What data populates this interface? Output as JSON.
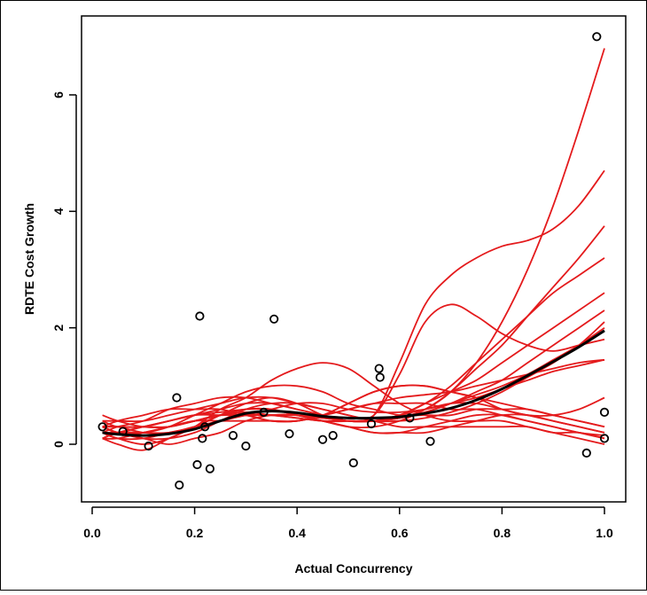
{
  "chart_data": {
    "type": "scatter",
    "xlabel": "Actual Concurrency",
    "ylabel": "RDTE Cost Growth",
    "xlim": [
      0.0,
      1.0
    ],
    "ylim": [
      -1.0,
      7.0
    ],
    "x_ticks": [
      "0.0",
      "0.2",
      "0.4",
      "0.6",
      "0.8",
      "1.0"
    ],
    "y_ticks": [
      "0",
      "2",
      "4",
      "6"
    ],
    "grid": false,
    "colors": {
      "points": "#000000",
      "bootstrap_curves": "#e41a1c",
      "fit_curve": "#000000"
    },
    "points": [
      {
        "x": 0.02,
        "y": 0.3
      },
      {
        "x": 0.06,
        "y": 0.22
      },
      {
        "x": 0.11,
        "y": -0.03
      },
      {
        "x": 0.165,
        "y": 0.8
      },
      {
        "x": 0.17,
        "y": -0.7
      },
      {
        "x": 0.205,
        "y": -0.35
      },
      {
        "x": 0.21,
        "y": 2.2
      },
      {
        "x": 0.215,
        "y": 0.1
      },
      {
        "x": 0.22,
        "y": 0.3
      },
      {
        "x": 0.23,
        "y": -0.42
      },
      {
        "x": 0.275,
        "y": 0.15
      },
      {
        "x": 0.3,
        "y": -0.03
      },
      {
        "x": 0.335,
        "y": 0.55
      },
      {
        "x": 0.355,
        "y": 2.15
      },
      {
        "x": 0.385,
        "y": 0.18
      },
      {
        "x": 0.45,
        "y": 0.08
      },
      {
        "x": 0.47,
        "y": 0.15
      },
      {
        "x": 0.51,
        "y": -0.32
      },
      {
        "x": 0.545,
        "y": 0.35
      },
      {
        "x": 0.56,
        "y": 1.3
      },
      {
        "x": 0.562,
        "y": 1.15
      },
      {
        "x": 0.62,
        "y": 0.45
      },
      {
        "x": 0.66,
        "y": 0.05
      },
      {
        "x": 0.965,
        "y": -0.15
      },
      {
        "x": 0.985,
        "y": 7.0
      },
      {
        "x": 1.0,
        "y": 0.55
      },
      {
        "x": 1.0,
        "y": 0.1
      }
    ],
    "fit_curve": {
      "x": [
        0.02,
        0.05,
        0.1,
        0.15,
        0.2,
        0.25,
        0.3,
        0.35,
        0.4,
        0.45,
        0.5,
        0.55,
        0.6,
        0.65,
        0.7,
        0.75,
        0.8,
        0.85,
        0.9,
        0.95,
        1.0
      ],
      "y": [
        0.2,
        0.17,
        0.15,
        0.18,
        0.26,
        0.4,
        0.53,
        0.57,
        0.54,
        0.48,
        0.45,
        0.45,
        0.47,
        0.53,
        0.62,
        0.76,
        0.95,
        1.18,
        1.42,
        1.67,
        1.95
      ]
    },
    "bootstrap_curves": [
      [
        0.3,
        0.2,
        0.2,
        0.3,
        0.4,
        0.5,
        0.55,
        0.5,
        0.45,
        0.4,
        0.4,
        0.5,
        1.4,
        2.4,
        2.9,
        3.2,
        3.4,
        3.5,
        3.7,
        4.1,
        4.7
      ],
      [
        0.2,
        0.1,
        0.0,
        0.1,
        0.3,
        0.5,
        0.6,
        0.6,
        0.5,
        0.45,
        0.45,
        0.5,
        1.2,
        2.1,
        2.4,
        2.2,
        1.9,
        1.7,
        1.6,
        1.7,
        1.8
      ],
      [
        0.3,
        0.2,
        0.2,
        0.3,
        0.4,
        0.5,
        0.5,
        0.5,
        0.5,
        0.45,
        0.4,
        0.4,
        0.45,
        0.6,
        0.9,
        1.4,
        2.1,
        3.0,
        4.1,
        5.4,
        6.8
      ],
      [
        0.1,
        0.2,
        0.3,
        0.4,
        0.5,
        0.55,
        0.6,
        0.6,
        0.5,
        0.4,
        0.3,
        0.3,
        0.4,
        0.6,
        0.9,
        1.3,
        1.7,
        2.2,
        2.7,
        3.2,
        3.75
      ],
      [
        0.2,
        0.2,
        0.2,
        0.3,
        0.4,
        0.5,
        0.5,
        0.5,
        0.45,
        0.4,
        0.4,
        0.4,
        0.5,
        0.7,
        1.0,
        1.4,
        1.8,
        2.2,
        2.6,
        2.9,
        3.2
      ],
      [
        0.3,
        0.3,
        0.3,
        0.4,
        0.5,
        0.6,
        0.7,
        0.7,
        0.6,
        0.5,
        0.4,
        0.4,
        0.5,
        0.7,
        0.9,
        1.1,
        1.4,
        1.7,
        2.0,
        2.3,
        2.6
      ],
      [
        0.4,
        0.3,
        0.3,
        0.3,
        0.4,
        0.5,
        0.6,
        0.6,
        0.5,
        0.45,
        0.4,
        0.4,
        0.45,
        0.55,
        0.7,
        0.9,
        1.1,
        1.4,
        1.7,
        2.0,
        2.3
      ],
      [
        0.2,
        0.1,
        0.1,
        0.2,
        0.3,
        0.5,
        0.7,
        0.8,
        0.7,
        0.5,
        0.4,
        0.4,
        0.45,
        0.55,
        0.7,
        0.85,
        1.0,
        1.2,
        1.45,
        1.7,
        2.0
      ],
      [
        0.3,
        0.2,
        0.1,
        0.1,
        0.2,
        0.4,
        0.6,
        0.7,
        0.7,
        0.6,
        0.5,
        0.4,
        0.4,
        0.45,
        0.55,
        0.7,
        0.9,
        1.15,
        1.4,
        1.7,
        2.1
      ],
      [
        0.1,
        0.2,
        0.2,
        0.2,
        0.3,
        0.4,
        0.5,
        0.6,
        0.7,
        0.7,
        0.6,
        0.55,
        0.55,
        0.6,
        0.7,
        0.8,
        0.95,
        1.1,
        1.25,
        1.35,
        1.45
      ],
      [
        0.3,
        0.3,
        0.2,
        0.2,
        0.3,
        0.4,
        0.5,
        0.5,
        0.5,
        0.5,
        0.6,
        0.7,
        0.8,
        0.85,
        0.9,
        1.0,
        1.1,
        1.2,
        1.3,
        1.4,
        1.45
      ],
      [
        0.2,
        0.2,
        0.3,
        0.4,
        0.5,
        0.5,
        0.5,
        0.4,
        0.4,
        0.5,
        0.7,
        0.9,
        1.0,
        1.0,
        0.9,
        0.8,
        0.7,
        0.6,
        0.5,
        0.4,
        0.3
      ],
      [
        0.3,
        0.4,
        0.5,
        0.6,
        0.6,
        0.6,
        0.5,
        0.4,
        0.4,
        0.5,
        0.7,
        0.9,
        1.0,
        1.0,
        0.9,
        0.8,
        0.6,
        0.5,
        0.4,
        0.3,
        0.2
      ],
      [
        0.1,
        0.0,
        -0.1,
        0.1,
        0.3,
        0.6,
        0.8,
        1.1,
        1.3,
        1.4,
        1.3,
        1.0,
        0.7,
        0.5,
        0.4,
        0.4,
        0.4,
        0.3,
        0.2,
        0.1,
        0.0
      ],
      [
        0.4,
        0.4,
        0.4,
        0.5,
        0.6,
        0.7,
        0.8,
        0.8,
        0.7,
        0.6,
        0.5,
        0.4,
        0.3,
        0.3,
        0.3,
        0.3,
        0.3,
        0.3,
        0.2,
        0.2,
        0.1
      ],
      [
        0.3,
        0.2,
        0.1,
        0.0,
        0.1,
        0.2,
        0.4,
        0.5,
        0.5,
        0.4,
        0.3,
        0.2,
        0.2,
        0.2,
        0.3,
        0.4,
        0.5,
        0.5,
        0.4,
        0.3,
        0.2
      ],
      [
        0.2,
        0.3,
        0.4,
        0.6,
        0.7,
        0.8,
        0.8,
        0.7,
        0.6,
        0.5,
        0.4,
        0.4,
        0.5,
        0.6,
        0.7,
        0.7,
        0.6,
        0.5,
        0.5,
        0.6,
        0.8
      ],
      [
        0.5,
        0.4,
        0.3,
        0.3,
        0.4,
        0.5,
        0.6,
        0.6,
        0.5,
        0.4,
        0.3,
        0.2,
        0.2,
        0.3,
        0.4,
        0.5,
        0.5,
        0.4,
        0.3,
        0.2,
        0.15
      ],
      [
        0.1,
        0.1,
        0.2,
        0.3,
        0.4,
        0.4,
        0.4,
        0.4,
        0.4,
        0.5,
        0.6,
        0.7,
        0.7,
        0.7,
        0.6,
        0.6,
        0.5,
        0.4,
        0.3,
        0.2,
        0.1
      ],
      [
        0.3,
        0.2,
        0.2,
        0.3,
        0.5,
        0.7,
        0.9,
        1.0,
        1.0,
        0.9,
        0.7,
        0.6,
        0.5,
        0.5,
        0.5,
        0.6,
        0.6,
        0.6,
        0.5,
        0.4,
        0.3
      ]
    ]
  }
}
